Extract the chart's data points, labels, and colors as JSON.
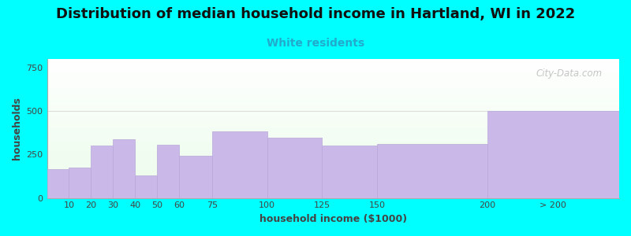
{
  "title": "Distribution of median household income in Hartland, WI in 2022",
  "subtitle": "White residents",
  "xlabel": "household income ($1000)",
  "ylabel": "households",
  "background_color": "#00ffff",
  "bar_color": "#c9b8e8",
  "bar_edge_color": "#b8a8d8",
  "categories": [
    "10",
    "20",
    "30",
    "40",
    "50",
    "60",
    "75",
    "100",
    "125",
    "150",
    "200",
    "> 200"
  ],
  "left_edges": [
    0,
    10,
    20,
    30,
    40,
    50,
    60,
    75,
    100,
    125,
    150,
    200
  ],
  "widths": [
    10,
    10,
    10,
    10,
    10,
    10,
    15,
    25,
    25,
    25,
    50,
    60
  ],
  "values": [
    165,
    175,
    300,
    340,
    130,
    305,
    245,
    385,
    345,
    300,
    310,
    500
  ],
  "tick_positions": [
    10,
    20,
    30,
    40,
    50,
    60,
    75,
    100,
    125,
    150,
    200,
    230
  ],
  "tick_labels": [
    "10",
    "20",
    "30",
    "40",
    "50",
    "60",
    "75",
    "100",
    "125",
    "150",
    "200",
    "> 200"
  ],
  "ylim": [
    0,
    800
  ],
  "xlim": [
    0,
    260
  ],
  "yticks": [
    0,
    250,
    500,
    750
  ],
  "title_fontsize": 13,
  "subtitle_fontsize": 10,
  "axis_label_fontsize": 9,
  "tick_fontsize": 8,
  "watermark_text": "City-Data.com",
  "title_color": "#111111",
  "subtitle_color": "#22aacc",
  "label_color": "#444444"
}
